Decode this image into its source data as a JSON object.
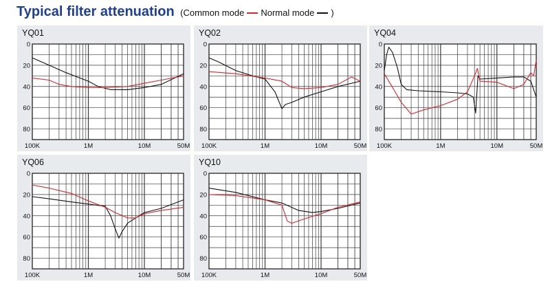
{
  "header": {
    "title": "Typical filter attenuation",
    "legend_open": "(Common mode",
    "legend_mid": "Normal mode",
    "legend_close": ")",
    "common_mode_color": "#e0242b",
    "normal_mode_color": "#111111"
  },
  "chart_data": [
    {
      "type": "line",
      "title": "YQ01",
      "x_scale": "log",
      "xlim": [
        100000,
        50000000
      ],
      "ylim": [
        0,
        90
      ],
      "y_inverted": true,
      "x_tick_labels": [
        "100K",
        "1M",
        "10M",
        "50M"
      ],
      "y_tick_labels": [
        "0",
        "20",
        "40",
        "60",
        "80"
      ],
      "series": [
        {
          "name": "Normal mode",
          "color": "#111111",
          "x": [
            100000,
            200000,
            400000,
            1000000,
            1500000,
            2500000,
            5000000,
            10000000,
            20000000,
            50000000
          ],
          "y": [
            13,
            20,
            27,
            35,
            40,
            43,
            43,
            41,
            38,
            28
          ]
        },
        {
          "name": "Common mode",
          "color": "#e0242b",
          "x": [
            100000,
            200000,
            300000,
            500000,
            1000000,
            2000000,
            5000000,
            10000000,
            20000000,
            50000000
          ],
          "y": [
            32,
            34,
            38,
            40,
            41,
            41,
            40,
            37,
            34,
            30
          ]
        }
      ]
    },
    {
      "type": "line",
      "title": "YQ02",
      "x_scale": "log",
      "xlim": [
        100000,
        50000000
      ],
      "ylim": [
        0,
        90
      ],
      "y_inverted": true,
      "x_tick_labels": [
        "100K",
        "1M",
        "10M",
        "50M"
      ],
      "y_tick_labels": [
        "0",
        "20",
        "40",
        "60",
        "80"
      ],
      "series": [
        {
          "name": "Normal mode",
          "color": "#111111",
          "x": [
            100000,
            150000,
            300000,
            600000,
            1000000,
            1500000,
            2000000,
            2300000,
            3000000,
            5000000,
            10000000,
            20000000,
            50000000
          ],
          "y": [
            13,
            17,
            25,
            30,
            33,
            45,
            61,
            57,
            55,
            50,
            45,
            40,
            35
          ]
        },
        {
          "name": "Common mode",
          "color": "#e0242b",
          "x": [
            100000,
            300000,
            1000000,
            2000000,
            3000000,
            5000000,
            10000000,
            20000000,
            35000000,
            50000000
          ],
          "y": [
            26,
            28,
            32,
            35,
            41,
            42,
            41,
            38,
            31,
            35
          ]
        }
      ]
    },
    {
      "type": "line",
      "title": "YQ04",
      "x_scale": "log",
      "xlim": [
        100000,
        50000000
      ],
      "ylim": [
        0,
        90
      ],
      "y_inverted": true,
      "x_tick_labels": [
        "100K",
        "1M",
        "10M",
        "50M"
      ],
      "y_tick_labels": [
        "0",
        "20",
        "40",
        "60",
        "80"
      ],
      "series": [
        {
          "name": "Normal mode",
          "color": "#111111",
          "x": [
            100000,
            110000,
            120000,
            140000,
            170000,
            200000,
            250000,
            400000,
            1000000,
            2000000,
            3000000,
            3800000,
            4200000,
            4600000,
            5000000,
            10000000,
            20000000,
            30000000,
            40000000,
            50000000
          ],
          "y": [
            25,
            10,
            3,
            8,
            22,
            38,
            43,
            44,
            45,
            46,
            47,
            50,
            65,
            30,
            33,
            32,
            31,
            31,
            35,
            50
          ]
        },
        {
          "name": "Common mode",
          "color": "#e0242b",
          "x": [
            100000,
            130000,
            200000,
            300000,
            500000,
            1000000,
            2000000,
            3000000,
            4000000,
            4500000,
            5000000,
            10000000,
            20000000,
            30000000,
            40000000,
            45000000,
            50000000
          ],
          "y": [
            28,
            38,
            55,
            66,
            62,
            58,
            52,
            45,
            30,
            23,
            35,
            36,
            42,
            38,
            27,
            30,
            15
          ]
        }
      ]
    },
    {
      "type": "line",
      "title": "YQ06",
      "x_scale": "log",
      "xlim": [
        100000,
        50000000
      ],
      "ylim": [
        0,
        90
      ],
      "y_inverted": true,
      "x_tick_labels": [
        "100K",
        "1M",
        "10M",
        "50M"
      ],
      "y_tick_labels": [
        "0",
        "20",
        "40",
        "60",
        "80"
      ],
      "series": [
        {
          "name": "Normal mode",
          "color": "#111111",
          "x": [
            100000,
            200000,
            500000,
            1000000,
            2000000,
            2500000,
            3000000,
            3500000,
            4000000,
            5000000,
            7000000,
            10000000,
            20000000,
            50000000
          ],
          "y": [
            22,
            24,
            27,
            29,
            31,
            40,
            52,
            61,
            55,
            47,
            42,
            37,
            33,
            25
          ]
        },
        {
          "name": "Common mode",
          "color": "#e0242b",
          "x": [
            100000,
            200000,
            500000,
            1000000,
            2000000,
            3000000,
            5000000,
            7000000,
            10000000,
            20000000,
            50000000
          ],
          "y": [
            11,
            14,
            19,
            26,
            32,
            37,
            42,
            42,
            38,
            35,
            32
          ]
        }
      ]
    },
    {
      "type": "line",
      "title": "YQ10",
      "x_scale": "log",
      "xlim": [
        100000,
        50000000
      ],
      "ylim": [
        0,
        90
      ],
      "y_inverted": true,
      "x_tick_labels": [
        "100K",
        "1M",
        "10M",
        "50M"
      ],
      "y_tick_labels": [
        "0",
        "20",
        "40",
        "60",
        "80"
      ],
      "series": [
        {
          "name": "Normal mode",
          "color": "#111111",
          "x": [
            100000,
            300000,
            1000000,
            2000000,
            4000000,
            7000000,
            10000000,
            20000000,
            50000000
          ],
          "y": [
            14,
            18,
            25,
            28,
            35,
            37,
            36,
            33,
            28
          ]
        },
        {
          "name": "Common mode",
          "color": "#e0242b",
          "x": [
            100000,
            300000,
            1000000,
            2000000,
            2500000,
            3000000,
            5000000,
            10000000,
            20000000,
            50000000
          ],
          "y": [
            20,
            21,
            25,
            30,
            45,
            47,
            43,
            38,
            32,
            27
          ]
        }
      ]
    }
  ]
}
